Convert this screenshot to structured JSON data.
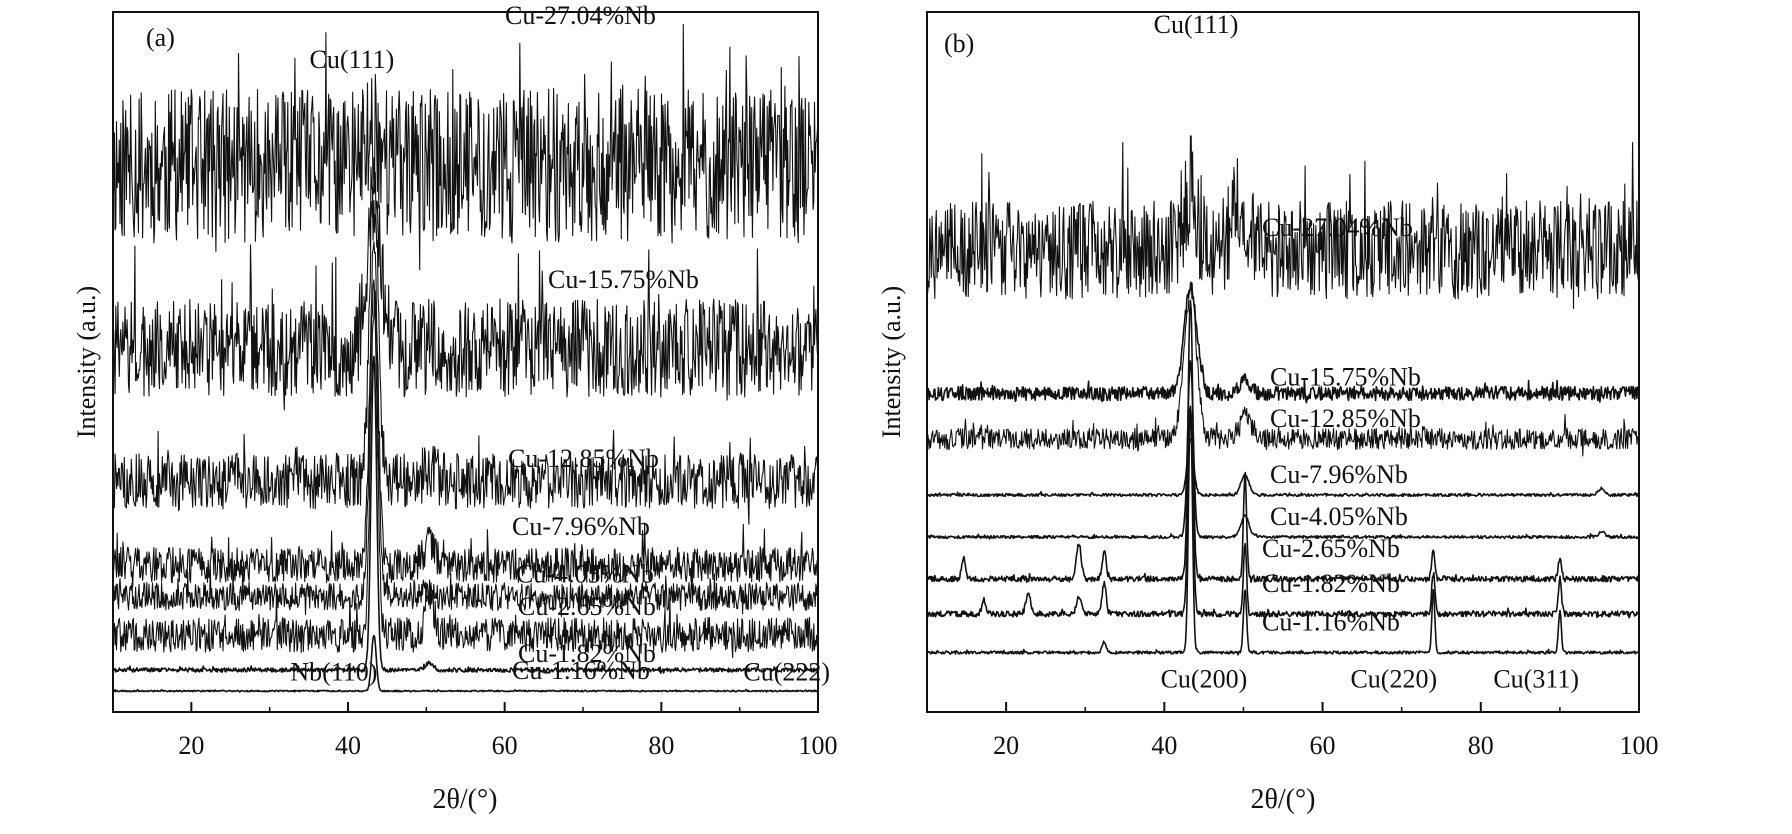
{
  "chart_data": [
    {
      "type": "line",
      "panel_label": "(a)",
      "xlabel": "2θ/(°)",
      "ylabel": "Intensity (a.u.)",
      "xlim": [
        10,
        100
      ],
      "x_ticks": [
        "20",
        "40",
        "60",
        "80",
        "100"
      ],
      "grid": false,
      "legend": "none",
      "series": [
        {
          "name": "Cu-27.04%Nb",
          "baseline": 0.78,
          "noise": 0.11,
          "peaks": [
            {
              "x": 43.3,
              "h": 0.05,
              "w": 1.0
            }
          ]
        },
        {
          "name": "Cu-15.75%Nb",
          "baseline": 0.52,
          "noise": 0.07,
          "peaks": [
            {
              "x": 43.3,
              "h": 0.22,
              "w": 0.9
            }
          ]
        },
        {
          "name": "Cu-12.85%Nb",
          "baseline": 0.33,
          "noise": 0.04,
          "peaks": [
            {
              "x": 43.3,
              "h": 0.44,
              "w": 0.55
            },
            {
              "x": 50.4,
              "h": 0.015,
              "w": 0.8
            }
          ]
        },
        {
          "name": "Cu-7.96%Nb",
          "baseline": 0.21,
          "noise": 0.025,
          "peaks": [
            {
              "x": 43.3,
              "h": 0.47,
              "w": 0.5
            },
            {
              "x": 50.4,
              "h": 0.03,
              "w": 0.7
            }
          ]
        },
        {
          "name": "Cu-4.05%Nb",
          "baseline": 0.165,
          "noise": 0.02,
          "peaks": [
            {
              "x": 43.3,
              "h": 0.45,
              "w": 0.5
            },
            {
              "x": 50.4,
              "h": 0.015,
              "w": 0.6
            }
          ]
        },
        {
          "name": "Cu-2.65%Nb",
          "baseline": 0.11,
          "noise": 0.025,
          "peaks": [
            {
              "x": 43.3,
              "h": 0.46,
              "w": 0.45
            },
            {
              "x": 50.4,
              "h": 0.06,
              "w": 0.55
            }
          ]
        },
        {
          "name": "Cu-1.82%Nb",
          "baseline": 0.06,
          "noise": 0.003,
          "peaks": [
            {
              "x": 43.3,
              "h": 0.45,
              "w": 0.35
            },
            {
              "x": 50.4,
              "h": 0.01,
              "w": 0.5
            }
          ]
        },
        {
          "name": "Cu-1.16%Nb",
          "baseline": 0.03,
          "noise": 0.001,
          "peaks": [
            {
              "x": 43.3,
              "h": 0.08,
              "w": 0.3
            }
          ]
        }
      ],
      "annotations": [
        {
          "text": "Cu(111)",
          "x": 40.5,
          "y": 0.92
        },
        {
          "text": "Nb(110)",
          "x": 38.2,
          "y": 0.045
        },
        {
          "text": "Cu(222)",
          "x": 96.0,
          "y": 0.045
        }
      ]
    },
    {
      "type": "line",
      "panel_label": "(b)",
      "xlabel": "2θ/(°)",
      "ylabel": "Intensity (a.u.)",
      "xlim": [
        10,
        100
      ],
      "x_ticks": [
        "20",
        "40",
        "60",
        "80",
        "100"
      ],
      "grid": false,
      "legend": "none",
      "series": [
        {
          "name": "Cu-27.04%Nb",
          "baseline": 0.66,
          "noise": 0.07,
          "peaks": [
            {
              "x": 43.3,
              "h": 0.08,
              "w": 0.8
            },
            {
              "x": 49.5,
              "h": 0.07,
              "w": 1.0
            }
          ]
        },
        {
          "name": "Cu-15.75%Nb",
          "baseline": 0.455,
          "noise": 0.01,
          "peaks": [
            {
              "x": 43.3,
              "h": 0.15,
              "w": 0.8
            },
            {
              "x": 50.2,
              "h": 0.02,
              "w": 0.7
            }
          ]
        },
        {
          "name": "Cu-12.85%Nb",
          "baseline": 0.39,
          "noise": 0.015,
          "peaks": [
            {
              "x": 43.3,
              "h": 0.21,
              "w": 0.8
            },
            {
              "x": 50.2,
              "h": 0.035,
              "w": 0.7
            }
          ]
        },
        {
          "name": "Cu-7.96%Nb",
          "baseline": 0.31,
          "noise": 0.002,
          "peaks": [
            {
              "x": 43.3,
              "h": 0.08,
              "w": 0.4
            },
            {
              "x": 50.2,
              "h": 0.03,
              "w": 0.5
            },
            {
              "x": 95.3,
              "h": 0.01,
              "w": 0.4
            }
          ]
        },
        {
          "name": "Cu-4.05%Nb",
          "baseline": 0.25,
          "noise": 0.002,
          "peaks": [
            {
              "x": 43.3,
              "h": 0.25,
              "w": 0.35
            },
            {
              "x": 50.2,
              "h": 0.03,
              "w": 0.5
            },
            {
              "x": 95.3,
              "h": 0.008,
              "w": 0.4
            }
          ]
        },
        {
          "name": "Cu-2.65%Nb",
          "baseline": 0.19,
          "noise": 0.004,
          "peaks": [
            {
              "x": 43.3,
              "h": 0.4,
              "w": 0.3
            },
            {
              "x": 50.2,
              "h": 0.15,
              "w": 0.2
            },
            {
              "x": 14.6,
              "h": 0.03,
              "w": 0.25
            },
            {
              "x": 29.2,
              "h": 0.05,
              "w": 0.3
            },
            {
              "x": 32.4,
              "h": 0.04,
              "w": 0.25
            },
            {
              "x": 74.0,
              "h": 0.04,
              "w": 0.2
            },
            {
              "x": 90.0,
              "h": 0.03,
              "w": 0.2
            }
          ]
        },
        {
          "name": "Cu-1.82%Nb",
          "baseline": 0.14,
          "noise": 0.004,
          "peaks": [
            {
              "x": 43.3,
              "h": 0.3,
              "w": 0.3
            },
            {
              "x": 50.2,
              "h": 0.1,
              "w": 0.2
            },
            {
              "x": 17.2,
              "h": 0.02,
              "w": 0.25
            },
            {
              "x": 22.8,
              "h": 0.03,
              "w": 0.3
            },
            {
              "x": 29.2,
              "h": 0.025,
              "w": 0.3
            },
            {
              "x": 32.4,
              "h": 0.045,
              "w": 0.25
            },
            {
              "x": 74.0,
              "h": 0.06,
              "w": 0.2
            },
            {
              "x": 90.0,
              "h": 0.05,
              "w": 0.2
            }
          ]
        },
        {
          "name": "Cu-1.16%Nb",
          "baseline": 0.085,
          "noise": 0.002,
          "peaks": [
            {
              "x": 43.3,
              "h": 0.35,
              "w": 0.25
            },
            {
              "x": 50.2,
              "h": 0.09,
              "w": 0.2
            },
            {
              "x": 32.4,
              "h": 0.015,
              "w": 0.25
            },
            {
              "x": 74.0,
              "h": 0.09,
              "w": 0.18
            },
            {
              "x": 90.0,
              "h": 0.06,
              "w": 0.18
            }
          ]
        }
      ],
      "annotations": [
        {
          "text": "Cu(111)",
          "x": 44.0,
          "y": 0.97
        },
        {
          "text": "Cu(200)",
          "x": 45.0,
          "y": 0.035
        },
        {
          "text": "Cu(220)",
          "x": 69.0,
          "y": 0.035
        },
        {
          "text": "Cu(311)",
          "x": 87.0,
          "y": 0.035
        }
      ]
    }
  ]
}
